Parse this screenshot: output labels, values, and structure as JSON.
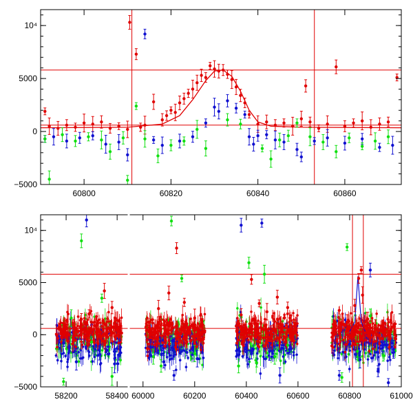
{
  "chart_data": [
    {
      "type": "scatter",
      "panel": "top",
      "title": "",
      "xlabel": "",
      "ylabel": "",
      "xlim": [
        60790,
        60873
      ],
      "ylim": [
        -5000,
        11500
      ],
      "xticks": [
        {
          "value": 60800,
          "label": "60800"
        },
        {
          "value": 60820,
          "label": "60820"
        },
        {
          "value": 60840,
          "label": "60840"
        },
        {
          "value": 60860,
          "label": "60860"
        }
      ],
      "yticks": [
        {
          "value": -5000,
          "label": "−5000"
        },
        {
          "value": 0,
          "label": "0"
        },
        {
          "value": 5000,
          "label": "5000"
        },
        {
          "value": 10000,
          "label": "10⁴"
        }
      ],
      "hlines": [
        {
          "value": 5800,
          "color": "#e00000"
        },
        {
          "value": 600,
          "color": "#e00000"
        }
      ],
      "vlines": [
        {
          "value": 60811,
          "color": "#e00000"
        },
        {
          "value": 60853,
          "color": "#e00000"
        }
      ],
      "model_curve": {
        "color": "#e00000",
        "x": [
          60790,
          60810,
          60818,
          60822,
          60825,
          60828,
          60830,
          60832,
          60834,
          60836,
          60838,
          60840,
          60843,
          60850,
          60873
        ],
        "y": [
          350,
          400,
          700,
          1500,
          3000,
          4800,
          5700,
          5800,
          5200,
          3800,
          2000,
          900,
          500,
          400,
          350
        ]
      },
      "series": [
        {
          "name": "red",
          "color": "#e00000",
          "x": [
            60791,
            60792,
            60794,
            60796,
            60798,
            60800,
            60802,
            60804,
            60806,
            60808,
            60810,
            60810.5,
            60812,
            60813,
            60814,
            60816,
            60818,
            60819,
            60820,
            60821,
            60822,
            60823,
            60824,
            60825,
            60826,
            60827,
            60828,
            60829,
            60830,
            60831,
            60832,
            60833,
            60834,
            60835,
            60836,
            60837,
            60838,
            60840,
            60842,
            60844,
            60846,
            60848,
            60850,
            60851,
            60852,
            60854,
            60856,
            60858,
            60860,
            60862,
            60864,
            60866,
            60868,
            60870,
            60872
          ],
          "y": [
            1900,
            500,
            300,
            600,
            400,
            800,
            700,
            900,
            300,
            500,
            200,
            10300,
            7300,
            400,
            600,
            2800,
            1100,
            1500,
            2000,
            1800,
            2700,
            3100,
            3600,
            4000,
            4600,
            5300,
            5100,
            6200,
            5900,
            5700,
            5800,
            5400,
            4900,
            4200,
            3400,
            2700,
            1600,
            700,
            900,
            600,
            800,
            500,
            1200,
            4300,
            900,
            300,
            700,
            6100,
            500,
            800,
            1000,
            400,
            700,
            900,
            5100
          ]
        },
        {
          "name": "blue",
          "color": "#1010d0",
          "x": [
            60791,
            60793,
            60796,
            60799,
            60802,
            60805,
            60808,
            60810,
            60814,
            60816,
            60818,
            60822,
            60825,
            60828,
            60830,
            60831,
            60833,
            60835,
            60837,
            60838,
            60839,
            60840,
            60842,
            60844,
            60846,
            60849,
            60850,
            60853,
            60856,
            60860,
            60864,
            60868,
            60871
          ],
          "y": [
            -700,
            -500,
            -900,
            -600,
            -400,
            -1200,
            -1000,
            -2200,
            9200,
            -800,
            -1300,
            -900,
            -500,
            800,
            2300,
            1900,
            2900,
            2200,
            1600,
            -500,
            -1200,
            -400,
            -300,
            -800,
            -1000,
            -1700,
            -2400,
            -900,
            -600,
            -1100,
            -700,
            -1500,
            -1300
          ]
        },
        {
          "name": "green",
          "color": "#10e010",
          "x": [
            60791,
            60792,
            60795,
            60798,
            60801,
            60804,
            60806,
            60809,
            60810,
            60812,
            60814,
            60817,
            60820,
            60823,
            60826,
            60828,
            60833,
            60836,
            60841,
            60843,
            60845,
            60847,
            60849,
            60852,
            60855,
            60858,
            60861,
            60864,
            60867,
            60870
          ],
          "y": [
            -700,
            -4500,
            -300,
            -900,
            -500,
            -800,
            -1900,
            -600,
            -4600,
            2400,
            -700,
            -2300,
            -1300,
            -900,
            200,
            -1600,
            1100,
            700,
            -1600,
            -2600,
            -800,
            -400,
            800,
            -500,
            -1000,
            -1900,
            -600,
            -1400,
            -900,
            -500
          ]
        }
      ]
    },
    {
      "type": "scatter",
      "panel": "bottom",
      "title": "",
      "xlabel": "",
      "ylabel": "",
      "xlim": [
        58100,
        61000
      ],
      "ylim": [
        -5000,
        11500
      ],
      "xticks": [
        {
          "value": 58200,
          "label": "58200"
        },
        {
          "value": 58400,
          "label": "58400"
        },
        {
          "value": 60000,
          "label": "60000"
        },
        {
          "value": 60200,
          "label": "60200"
        },
        {
          "value": 60400,
          "label": "60400"
        },
        {
          "value": 60600,
          "label": "60600"
        },
        {
          "value": 60800,
          "label": "60800"
        },
        {
          "value": 61000,
          "label": "61000"
        }
      ],
      "yticks": [
        {
          "value": -5000,
          "label": "−5000"
        },
        {
          "value": 0,
          "label": "0"
        },
        {
          "value": 5000,
          "label": "5000"
        },
        {
          "value": 10000,
          "label": "10⁴"
        }
      ],
      "axis_break": {
        "left": [
          58100,
          58440
        ],
        "right": [
          59950,
          61000
        ]
      },
      "hlines": [
        {
          "value": 5800,
          "color": "#e00000"
        },
        {
          "value": 600,
          "color": "#e00000"
        }
      ],
      "vlines": [
        {
          "value": 60811,
          "color": "#e00000"
        },
        {
          "value": 60853,
          "color": "#e00000"
        }
      ],
      "seasons": [
        {
          "x0": 58160,
          "x1": 58420
        },
        {
          "x0": 60010,
          "x1": 60240
        },
        {
          "x0": 60360,
          "x1": 60600
        },
        {
          "x0": 60730,
          "x1": 60980
        }
      ],
      "series": [
        {
          "name": "red",
          "color": "#e00000",
          "x": [
            58180,
            58200,
            58230,
            58260,
            58290,
            58320,
            58350,
            58380,
            58400,
            60020,
            60060,
            60100,
            60130,
            60160,
            60200,
            60230,
            60380,
            60420,
            60450,
            60480,
            60520,
            60560,
            60590,
            60760,
            60790,
            60820,
            60835,
            60845,
            60850,
            60870,
            60900,
            60930,
            60960
          ],
          "y": [
            300,
            600,
            800,
            1500,
            2000,
            900,
            4200,
            2600,
            500,
            1200,
            2500,
            4000,
            8300,
            3100,
            1600,
            800,
            1900,
            5300,
            3000,
            2200,
            3600,
            2600,
            1000,
            700,
            1200,
            2800,
            5400,
            6200,
            3800,
            1500,
            900,
            700,
            500
          ]
        },
        {
          "name": "blue",
          "color": "#1010d0",
          "x": [
            58190,
            58240,
            58280,
            58330,
            58360,
            58390,
            60030,
            60080,
            60120,
            60170,
            60210,
            60380,
            60420,
            60460,
            60490,
            60530,
            60570,
            60760,
            60800,
            60840,
            60880,
            60910,
            60950,
            60970
          ],
          "y": [
            -800,
            -2600,
            11000,
            -1900,
            -1500,
            -2800,
            -1200,
            -2600,
            -3900,
            -1700,
            -2300,
            10500,
            -1800,
            10700,
            -1600,
            -3900,
            -1300,
            -3900,
            -900,
            -2400,
            6200,
            -3500,
            -4600,
            -1400
          ]
        },
        {
          "name": "green",
          "color": "#10e010",
          "x": [
            58190,
            58220,
            58260,
            58300,
            58340,
            58380,
            60040,
            60070,
            60110,
            60150,
            60200,
            60370,
            60410,
            60440,
            60470,
            60510,
            60560,
            60770,
            60790,
            60830,
            60880,
            60930
          ],
          "y": [
            -4500,
            1600,
            9000,
            -700,
            3500,
            -4000,
            -2100,
            -3000,
            10900,
            5400,
            -1800,
            -3000,
            6900,
            -2700,
            5800,
            -2100,
            -1000,
            -4100,
            8400,
            -1600,
            1800,
            -2000
          ]
        }
      ]
    }
  ]
}
